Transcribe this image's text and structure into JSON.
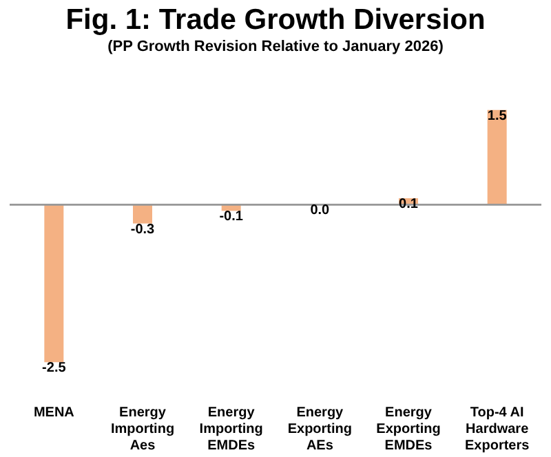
{
  "chart_data": {
    "type": "bar",
    "title": "Fig. 1: Trade Growth Diversion",
    "subtitle": "(PP Growth Revision Relative to January 2026)",
    "categories": [
      "MENA",
      "Energy Importing Aes",
      "Energy Importing EMDEs",
      "Energy Exporting AEs",
      "Energy Exporting EMDEs",
      "Top-4 AI Hardware Exporters"
    ],
    "values": [
      -2.5,
      -0.3,
      -0.1,
      0.0,
      0.1,
      1.5
    ],
    "value_labels": [
      "-2.5",
      "-0.3",
      "-0.1",
      "0.0",
      "0.1",
      "1.5"
    ],
    "color": "#f4b183",
    "grid": false
  }
}
